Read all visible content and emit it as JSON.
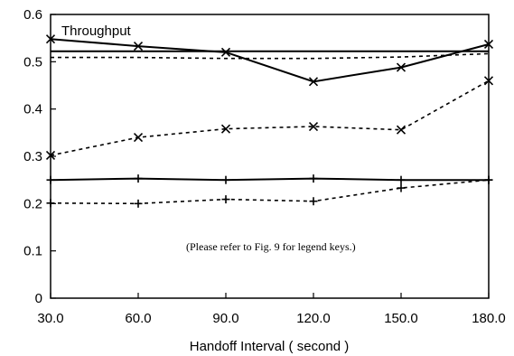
{
  "chart_data": {
    "type": "line",
    "title": "Throughput",
    "xlabel": "Handoff Interval ( second )",
    "ylabel": "",
    "annotation": "(Please refer to Fig. 9 for legend keys.)",
    "x": [
      30.0,
      60.0,
      90.0,
      120.0,
      150.0,
      180.0
    ],
    "x_tick_labels": [
      "30.0",
      "60.0",
      "90.0",
      "120.0",
      "150.0",
      "180.0"
    ],
    "xlim": [
      30,
      180
    ],
    "ylim": [
      0,
      0.6
    ],
    "y_ticks": [
      0,
      0.1,
      0.2,
      0.3,
      0.4,
      0.5,
      0.6
    ],
    "y_tick_labels": [
      "0",
      "0.1",
      "0.2",
      "0.3",
      "0.4",
      "0.5",
      "0.6"
    ],
    "grid": false,
    "series": [
      {
        "style": "solid",
        "marker": "none",
        "values": [
          0.522,
          0.522,
          0.522,
          0.522,
          0.522,
          0.522
        ]
      },
      {
        "style": "dashed",
        "marker": "none",
        "values": [
          0.509,
          0.509,
          0.507,
          0.507,
          0.51,
          0.517
        ]
      },
      {
        "style": "solid",
        "marker": "x",
        "values": [
          0.548,
          0.533,
          0.52,
          0.458,
          0.488,
          0.537
        ]
      },
      {
        "style": "dashed",
        "marker": "x",
        "values": [
          0.302,
          0.34,
          0.358,
          0.363,
          0.356,
          0.46
        ]
      },
      {
        "style": "solid",
        "marker": "plus",
        "values": [
          0.25,
          0.253,
          0.25,
          0.253,
          0.25,
          0.25
        ]
      },
      {
        "style": "dashed",
        "marker": "plus",
        "values": [
          0.201,
          0.2,
          0.209,
          0.205,
          0.233,
          0.25
        ]
      }
    ]
  }
}
